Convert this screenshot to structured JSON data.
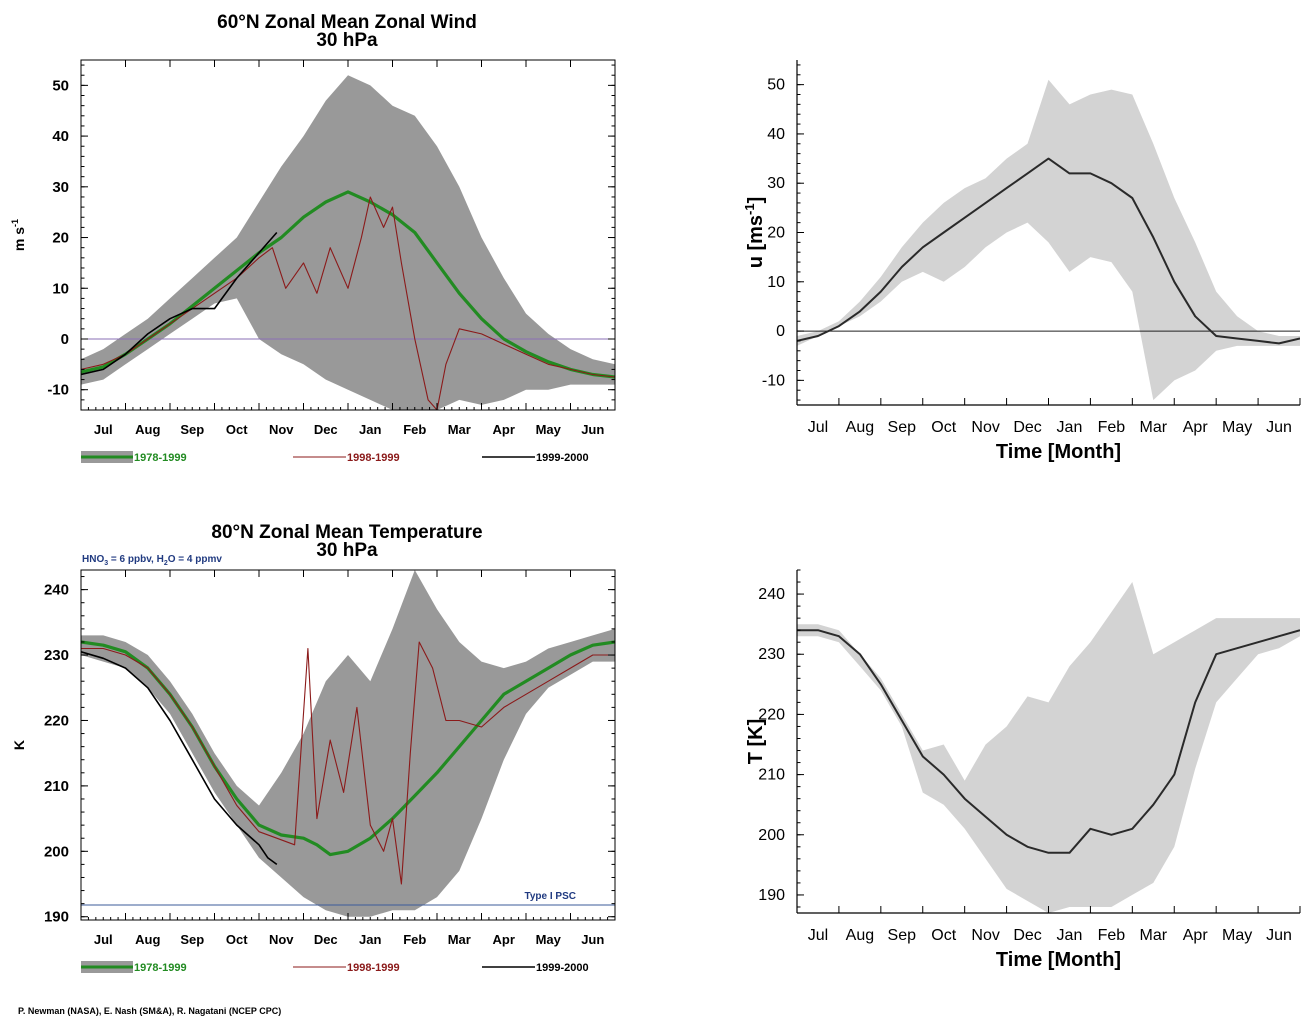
{
  "credit": "P. Newman (NASA), E. Nash (SM&A), R. Nagatani (NCEP CPC)",
  "colors": {
    "envelope_dark": "#999999",
    "envelope_light": "#d3d3d3",
    "climatology": "#228b22",
    "year_1998_1999": "#8b1a1a",
    "year_1999_2000": "#000000",
    "zero_line": "#8a6fb5",
    "psc_line": "#3b5b9a",
    "blue_text": "#203a80"
  },
  "chart_data": [
    {
      "type": "line",
      "title": "60°N Zonal Mean Zonal Wind",
      "subtitle": "30 hPa",
      "xlabel": "",
      "ylabel": "m s-1",
      "ylabel_main": "m s",
      "ylabel_sup": "-1",
      "x_ticklabels": [
        "Jul",
        "Aug",
        "Sep",
        "Oct",
        "Nov",
        "Dec",
        "Jan",
        "Feb",
        "Mar",
        "Apr",
        "May",
        "Jun"
      ],
      "xlim": [
        0,
        12
      ],
      "ylim": [
        -14,
        55
      ],
      "yticks": [
        -10,
        0,
        10,
        20,
        30,
        40,
        50
      ],
      "reference_line": {
        "y": 0
      },
      "legend": [
        "1978-1999",
        "1998-1999",
        "1999-2000"
      ],
      "legend_placement": "bottom",
      "envelope": {
        "x": [
          0,
          0.5,
          1,
          1.5,
          2,
          2.5,
          3,
          3.5,
          4,
          4.5,
          5,
          5.5,
          6,
          6.5,
          7,
          7.5,
          8,
          8.5,
          9,
          9.5,
          10,
          10.5,
          11,
          11.5,
          12
        ],
        "upper": [
          -4,
          -2,
          1,
          4,
          8,
          12,
          16,
          20,
          27,
          34,
          40,
          47,
          52,
          50,
          46,
          44,
          38,
          30,
          20,
          12,
          5,
          1,
          -2,
          -4,
          -5
        ],
        "lower": [
          -9,
          -8,
          -5,
          -2,
          1,
          4,
          7,
          8,
          0,
          -3,
          -5,
          -8,
          -10,
          -12,
          -14,
          -14,
          -14,
          -12,
          -13,
          -12,
          -10,
          -10,
          -9,
          -9,
          -9
        ]
      },
      "series": [
        {
          "name": "1978-1999",
          "x": [
            0,
            0.5,
            1,
            1.5,
            2,
            2.5,
            3,
            3.5,
            4,
            4.5,
            5,
            5.5,
            6,
            6.5,
            7,
            7.5,
            8,
            8.5,
            9,
            9.5,
            10,
            10.5,
            11,
            11.5,
            12
          ],
          "y": [
            -6.5,
            -5.5,
            -3,
            0,
            3,
            6.5,
            10,
            13.5,
            17,
            20,
            24,
            27,
            29,
            27,
            24.5,
            21,
            15,
            9,
            4,
            0,
            -2.5,
            -4.5,
            -6,
            -7,
            -7.5
          ]
        },
        {
          "name": "1998-1999",
          "x": [
            0,
            0.5,
            1,
            1.5,
            2,
            2.5,
            3,
            3.5,
            4,
            4.3,
            4.6,
            5,
            5.3,
            5.6,
            6,
            6.3,
            6.5,
            6.8,
            7,
            7.2,
            7.5,
            7.8,
            8,
            8.2,
            8.5,
            9,
            9.5,
            10,
            10.5,
            11,
            11.5,
            12
          ],
          "y": [
            -6,
            -5,
            -3,
            0,
            3,
            6,
            9,
            12,
            16,
            18,
            10,
            15,
            9,
            18,
            10,
            20,
            28,
            22,
            26,
            15,
            0,
            -12,
            -14,
            -5,
            2,
            1,
            -1,
            -3,
            -5,
            -6,
            -7,
            -7.5
          ]
        },
        {
          "name": "1999-2000",
          "x": [
            0,
            0.5,
            1,
            1.5,
            2,
            2.5,
            3,
            3.5,
            3.9,
            4.2,
            4.4
          ],
          "y": [
            -7,
            -6,
            -3,
            1,
            4,
            6,
            6,
            12,
            16,
            19,
            21
          ]
        }
      ]
    },
    {
      "type": "line",
      "title": "",
      "xlabel": "Time [Month]",
      "ylabel": "u [ms-1]",
      "ylabel_main": "u [ms",
      "ylabel_sup": "-1",
      "ylabel_end": "]",
      "x_ticklabels": [
        "Jul",
        "Aug",
        "Sep",
        "Oct",
        "Nov",
        "Dec",
        "Jan",
        "Feb",
        "Mar",
        "Apr",
        "May",
        "Jun"
      ],
      "xlim": [
        0,
        12
      ],
      "ylim": [
        -15,
        55
      ],
      "yticks": [
        -10,
        0,
        10,
        20,
        30,
        40,
        50
      ],
      "reference_line": {
        "y": 0
      },
      "envelope": {
        "x": [
          0,
          0.5,
          1,
          1.5,
          2,
          2.5,
          3,
          3.5,
          4,
          4.5,
          5,
          5.5,
          6,
          6.5,
          7,
          7.5,
          8,
          8.5,
          9,
          9.5,
          10,
          10.5,
          11,
          11.5,
          12
        ],
        "upper": [
          -1,
          0,
          2,
          6,
          11,
          17,
          22,
          26,
          29,
          31,
          35,
          38,
          51,
          46,
          48,
          49,
          48,
          38,
          27,
          18,
          8,
          3,
          0,
          -1,
          -1
        ],
        "lower": [
          -3,
          -1,
          1,
          3,
          6,
          10,
          12,
          10,
          13,
          17,
          20,
          22,
          18,
          12,
          15,
          14,
          8,
          -14,
          -10,
          -8,
          -4,
          -3,
          -3,
          -3,
          -3
        ]
      },
      "series": [
        {
          "name": "",
          "x": [
            0,
            0.5,
            1,
            1.5,
            2,
            2.5,
            3,
            3.5,
            4,
            4.5,
            5,
            5.5,
            6,
            6.5,
            7,
            7.5,
            8,
            8.5,
            9,
            9.5,
            10,
            10.5,
            11,
            11.5,
            12
          ],
          "y": [
            -2,
            -1,
            1,
            4,
            8,
            13,
            17,
            20,
            23,
            26,
            29,
            32,
            35,
            32,
            32,
            30,
            27,
            19,
            10,
            3,
            -1,
            -1.5,
            -2,
            -2.5,
            -1.5
          ]
        }
      ]
    },
    {
      "type": "line",
      "title": "80°N Zonal Mean Temperature",
      "subtitle": "30 hPa",
      "xlabel": "",
      "ylabel": "K",
      "annotation_top": {
        "parts": [
          "HNO",
          "3",
          " = 6 ppbv, H",
          "2",
          "O = 4 ppmv"
        ]
      },
      "reference_line": {
        "y": 191.8,
        "label": "Type I PSC"
      },
      "x_ticklabels": [
        "Jul",
        "Aug",
        "Sep",
        "Oct",
        "Nov",
        "Dec",
        "Jan",
        "Feb",
        "Mar",
        "Apr",
        "May",
        "Jun"
      ],
      "xlim": [
        0,
        12
      ],
      "ylim": [
        189.5,
        243
      ],
      "yticks": [
        190,
        200,
        210,
        220,
        230,
        240
      ],
      "legend": [
        "1978-1999",
        "1998-1999",
        "1999-2000"
      ],
      "legend_placement": "bottom",
      "envelope": {
        "x": [
          0,
          0.5,
          1,
          1.5,
          2,
          2.5,
          3,
          3.5,
          4,
          4.5,
          5,
          5.5,
          6,
          6.5,
          7,
          7.5,
          8,
          8.5,
          9,
          9.5,
          10,
          10.5,
          11,
          11.5,
          12
        ],
        "upper": [
          233,
          233,
          232,
          230,
          226,
          221,
          215,
          210,
          207,
          212,
          218,
          226,
          230,
          226,
          234,
          243,
          237,
          232,
          229,
          228,
          229,
          231,
          232,
          233,
          234
        ],
        "lower": [
          230,
          229,
          228,
          225,
          221,
          215,
          209,
          204,
          199,
          196,
          193,
          191,
          190,
          190,
          191,
          191,
          193,
          197,
          205,
          214,
          221,
          225,
          227,
          229,
          229
        ]
      },
      "series": [
        {
          "name": "1978-1999",
          "x": [
            0,
            0.5,
            1,
            1.5,
            2,
            2.5,
            3,
            3.5,
            4,
            4.5,
            5,
            5.3,
            5.6,
            6,
            6.5,
            7,
            7.5,
            8,
            8.5,
            9,
            9.5,
            10,
            10.5,
            11,
            11.5,
            12
          ],
          "y": [
            232,
            231.5,
            230.5,
            228,
            224,
            219,
            213,
            208,
            204,
            202.5,
            202,
            201,
            199.5,
            200,
            202,
            205,
            208.5,
            212,
            216,
            220,
            224,
            226,
            228,
            230,
            231.5,
            232
          ]
        },
        {
          "name": "1998-1999",
          "x": [
            0,
            0.5,
            1,
            1.5,
            2,
            2.5,
            3,
            3.5,
            4,
            4.4,
            4.8,
            5.1,
            5.3,
            5.6,
            5.9,
            6.2,
            6.5,
            6.8,
            7,
            7.2,
            7.4,
            7.6,
            7.9,
            8.2,
            8.5,
            9,
            9.5,
            10,
            10.5,
            11,
            11.5,
            12
          ],
          "y": [
            231,
            231,
            230,
            228,
            224,
            219,
            213,
            207,
            203,
            202,
            201,
            231,
            205,
            217,
            209,
            222,
            204,
            200,
            205,
            195,
            215,
            232,
            228,
            220,
            220,
            219,
            222,
            224,
            226,
            228,
            230,
            230
          ]
        },
        {
          "name": "1999-2000",
          "x": [
            0,
            0.5,
            1,
            1.5,
            2,
            2.5,
            3,
            3.5,
            4,
            4.2,
            4.4
          ],
          "y": [
            230.5,
            229.5,
            228,
            225,
            220,
            214,
            208,
            204,
            201,
            199,
            198
          ]
        }
      ]
    },
    {
      "type": "line",
      "title": "",
      "xlabel": "Time [Month]",
      "ylabel": "T [K]",
      "x_ticklabels": [
        "Jul",
        "Aug",
        "Sep",
        "Oct",
        "Nov",
        "Dec",
        "Jan",
        "Feb",
        "Mar",
        "Apr",
        "May",
        "Jun"
      ],
      "xlim": [
        0,
        12
      ],
      "ylim": [
        187,
        244
      ],
      "yticks": [
        190,
        200,
        210,
        220,
        230,
        240
      ],
      "envelope": {
        "x": [
          0,
          0.5,
          1,
          1.5,
          2,
          2.5,
          3,
          3.5,
          4,
          4.5,
          5,
          5.5,
          6,
          6.5,
          7,
          7.5,
          8,
          8.5,
          9,
          9.5,
          10,
          10.5,
          11,
          11.5,
          12
        ],
        "upper": [
          235,
          235,
          234,
          230,
          226,
          220,
          214,
          215,
          209,
          215,
          218,
          223,
          222,
          228,
          232,
          237,
          242,
          230,
          232,
          234,
          236,
          236,
          236,
          236,
          236
        ],
        "lower": [
          233,
          233,
          232,
          228,
          224,
          218,
          207,
          205,
          201,
          196,
          191,
          189,
          187,
          188,
          188,
          188,
          190,
          192,
          198,
          211,
          222,
          226,
          230,
          231,
          233
        ]
      },
      "series": [
        {
          "name": "",
          "x": [
            0,
            0.5,
            1,
            1.5,
            2,
            2.5,
            3,
            3.5,
            4,
            4.5,
            5,
            5.5,
            6,
            6.5,
            7,
            7.5,
            8,
            8.5,
            9,
            9.5,
            10,
            10.5,
            11,
            11.5,
            12
          ],
          "y": [
            234,
            234,
            233,
            230,
            225,
            219,
            213,
            210,
            206,
            203,
            200,
            198,
            197,
            197,
            201,
            200,
            201,
            205,
            210,
            222,
            230,
            231,
            232,
            233,
            234
          ]
        }
      ]
    }
  ]
}
